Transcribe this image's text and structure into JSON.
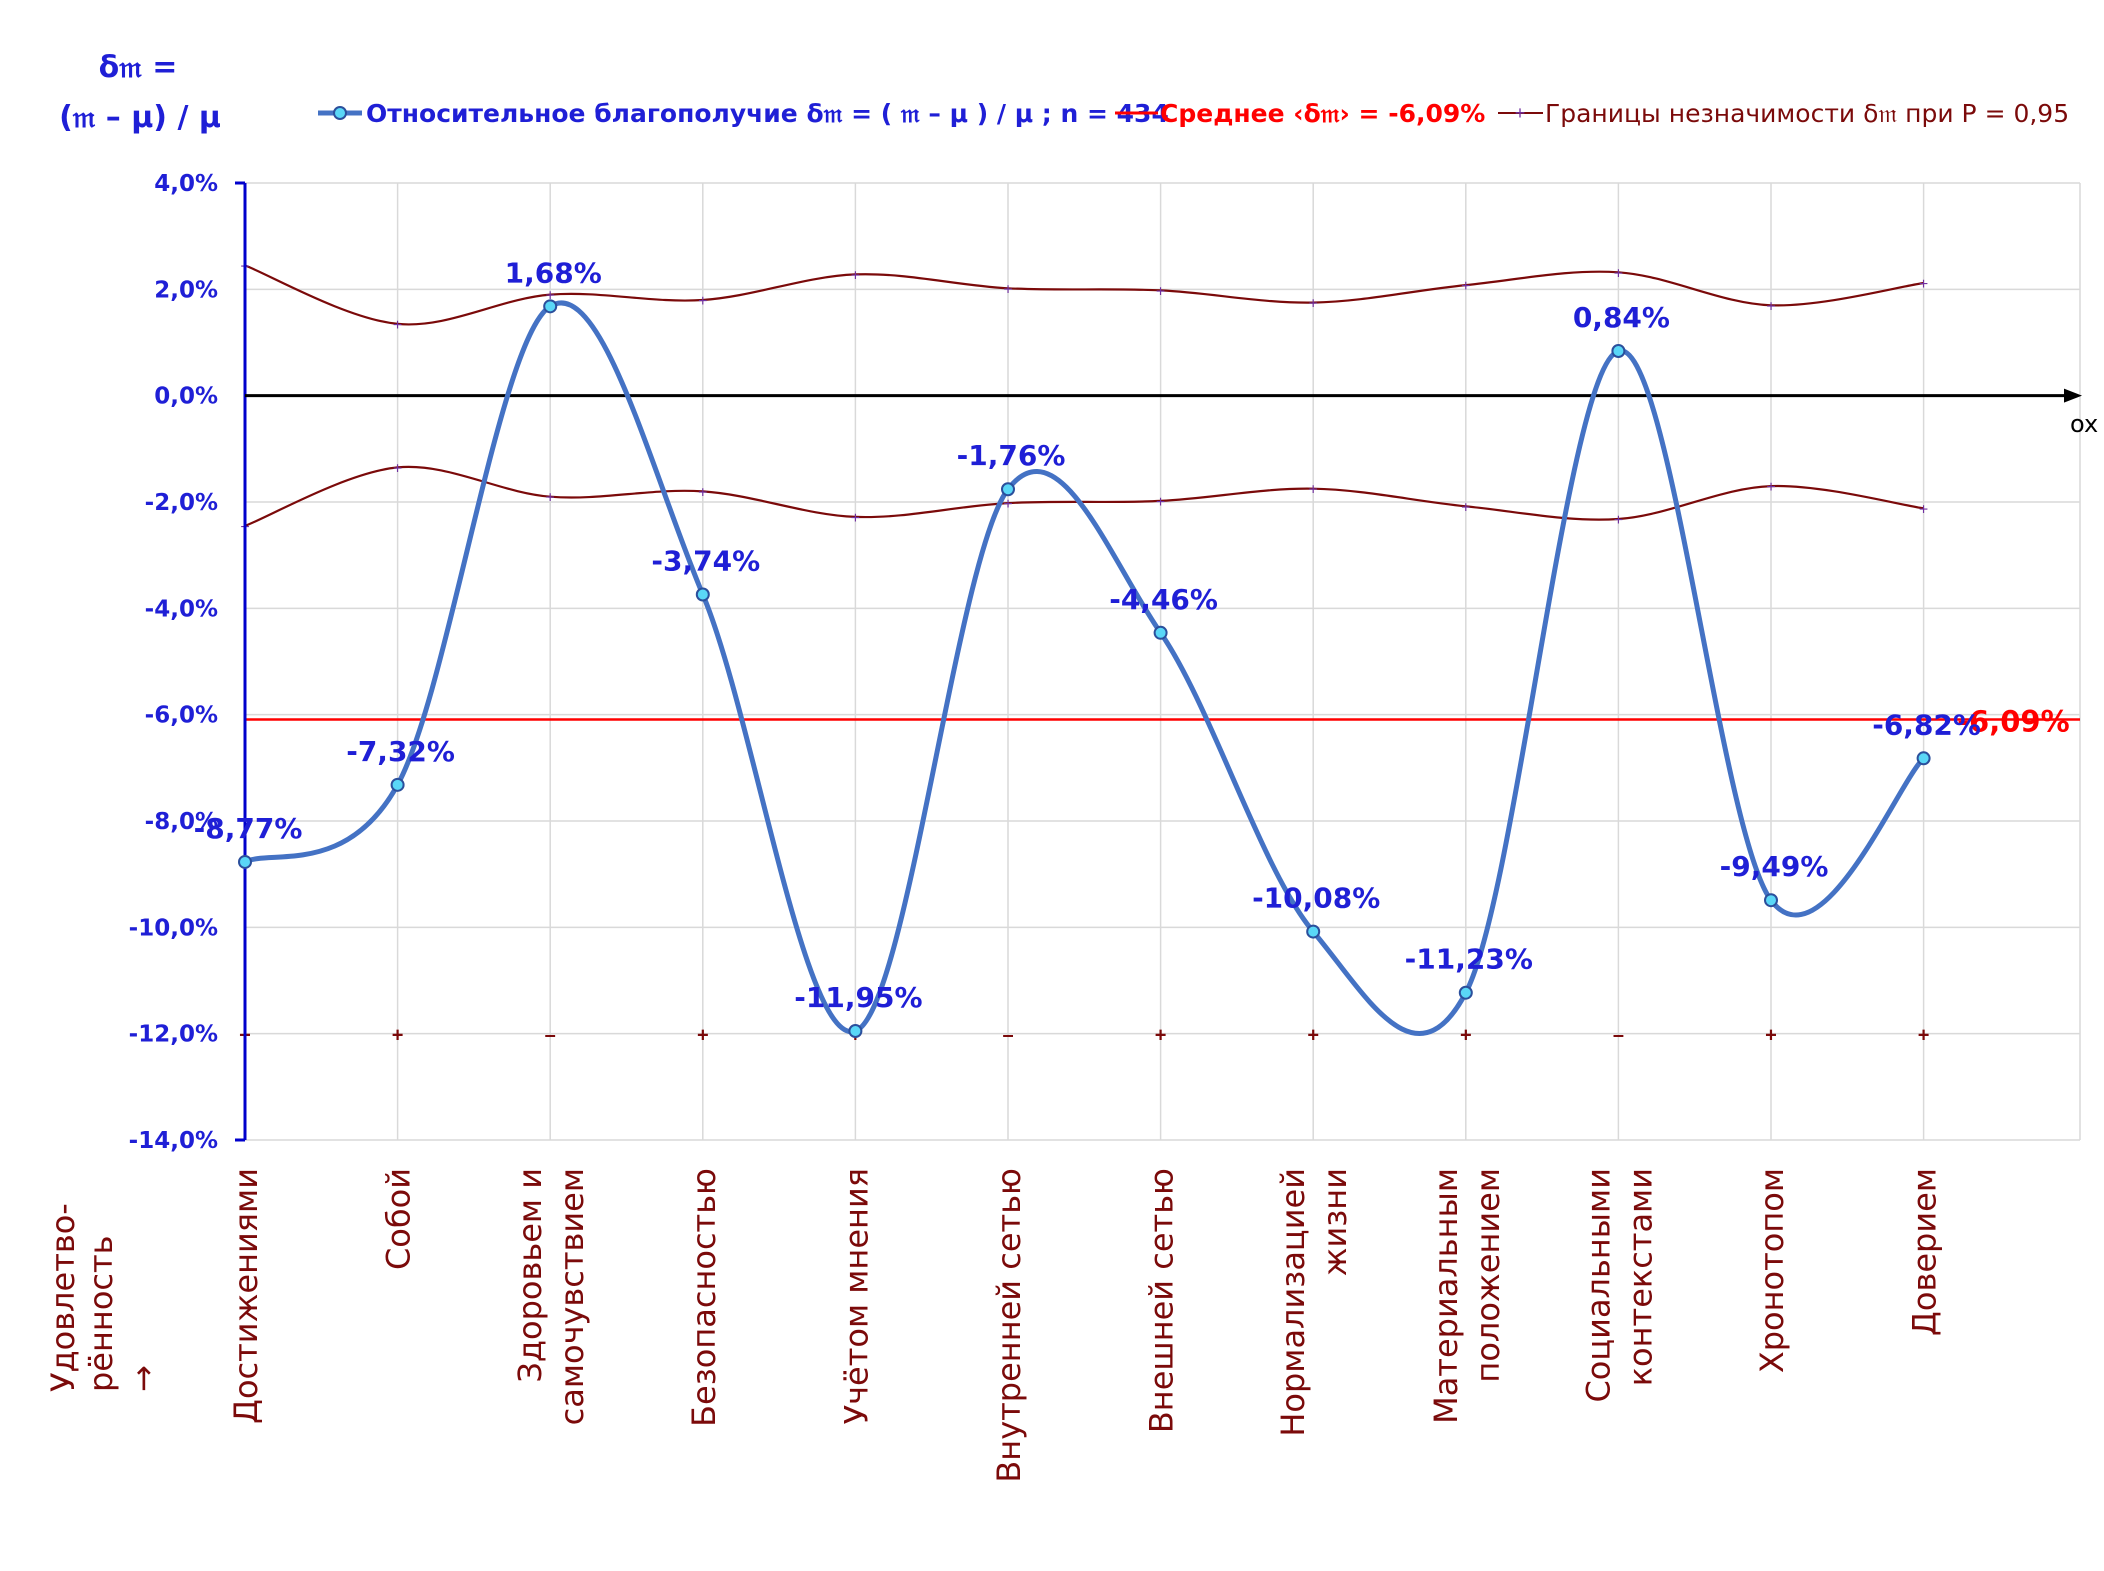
{
  "chart_data": {
    "type": "line",
    "y_title_line1": "δ𝔪 =",
    "y_title_line2": "(𝔪 – μ) / μ",
    "x_title_line1": "Удовлетво-",
    "x_title_line2": "рённость",
    "x_title_arrow": "→",
    "axis_end_label": "ox",
    "categories": [
      [
        "Достижениями"
      ],
      [
        "Собой"
      ],
      [
        "Здоровьем и",
        "самочувствием"
      ],
      [
        "Безопасностью"
      ],
      [
        "Учётом мнения"
      ],
      [
        "Внутренней сетью"
      ],
      [
        "Внешней сетью"
      ],
      [
        "Нормализацией",
        "жизни"
      ],
      [
        "Материальным",
        "положением"
      ],
      [
        "Социальными",
        "контекстами"
      ],
      [
        "Хронотопом"
      ],
      [
        "Доверием"
      ]
    ],
    "ylim": [
      -14,
      4
    ],
    "yticks": [
      "4,0%",
      "2,0%",
      "0,0%",
      "-2,0%",
      "-4,0%",
      "-6,0%",
      "-8,0%",
      "-10,0%",
      "-12,0%",
      "-14,0%"
    ],
    "series": [
      {
        "name": "Относительное благополучие δ𝔪 = ( 𝔪 – μ ) / μ ; n = 434",
        "color": "#4472c4",
        "values": [
          -8.77,
          -7.32,
          1.68,
          -3.74,
          -11.95,
          -1.76,
          -4.46,
          -10.08,
          -11.23,
          0.84,
          -9.49,
          -6.82
        ],
        "labels": [
          "-8,77%",
          "-7,32%",
          "1,68%",
          "-3,74%",
          "-11,95%",
          "-1,76%",
          "-4,46%",
          "-10,08%",
          "-11,23%",
          "0,84%",
          "-9,49%",
          "-6,82%"
        ]
      },
      {
        "name": "Среднее ‹δ𝔪› = -6,09%",
        "color": "#ff0000",
        "value": -6.09,
        "label": "-6,09%"
      },
      {
        "name": "Границы незначимости δ𝔪 при P = 0,95",
        "color": "#7b0a0a",
        "upper": [
          2.45,
          1.35,
          1.9,
          1.8,
          2.28,
          2.02,
          1.98,
          1.75,
          2.08,
          2.32,
          1.7,
          2.12
        ],
        "lower": [
          -2.45,
          -1.35,
          -1.9,
          -1.8,
          -2.28,
          -2.02,
          -1.98,
          -1.75,
          -2.08,
          -2.32,
          -1.7,
          -2.12
        ],
        "bottom_marks": [
          "+",
          "+",
          "–",
          "+",
          "+",
          "–",
          "+",
          "+",
          "+",
          "–",
          "+",
          "+"
        ]
      }
    ],
    "grid": true,
    "legend_position": "top"
  }
}
